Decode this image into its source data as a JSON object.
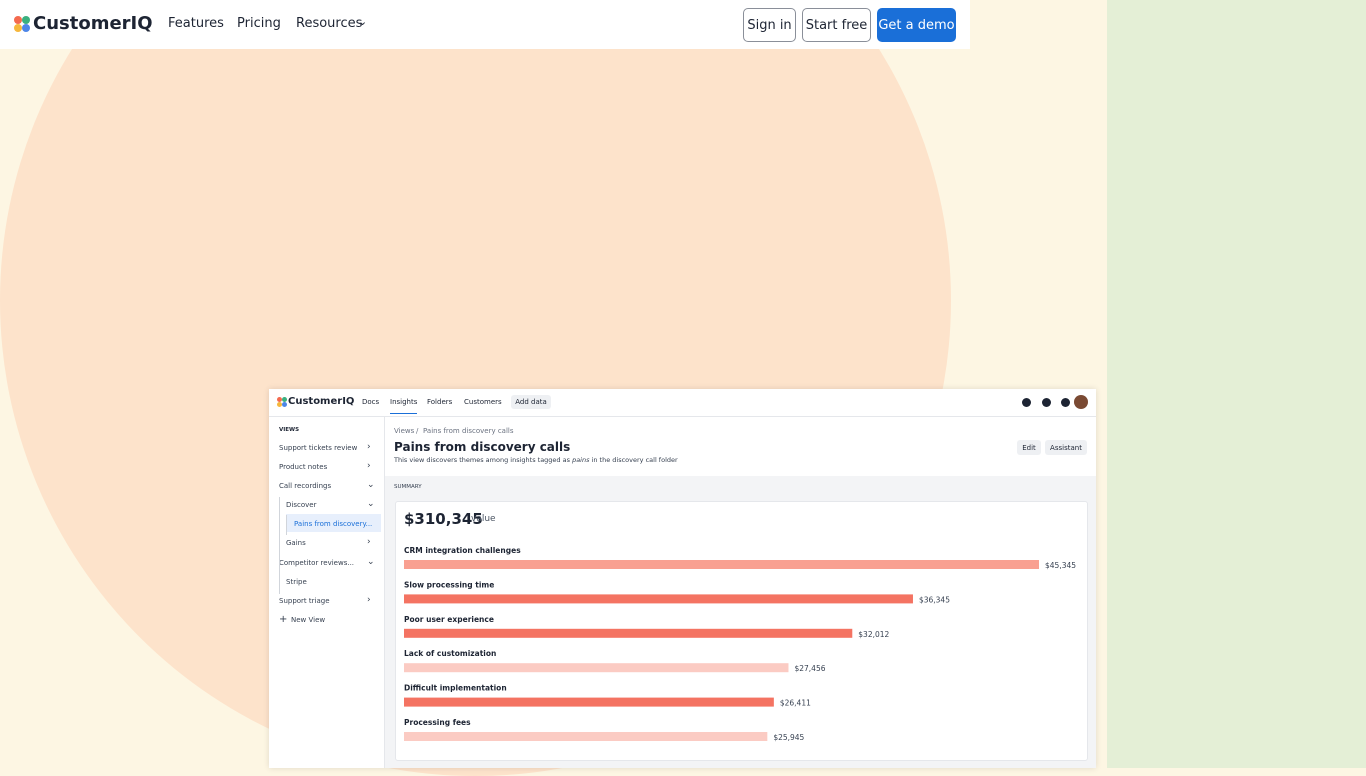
{
  "nav": {
    "brand": "CustomerIQ",
    "links": [
      "Features",
      "Pricing",
      "Resources"
    ],
    "buttons": [
      "Sign in",
      "Start free",
      "Get a demo"
    ]
  },
  "app": {
    "brand": "CustomerIQ",
    "tabs": [
      "Docs",
      "Insights",
      "Folders",
      "Customers"
    ],
    "add_data": "Add data",
    "sidebar": {
      "heading": "VIEWS",
      "items": [
        "Support tickets review",
        "Product notes",
        "Call recordings",
        "Discover",
        "Pains from discovery...",
        "Gains",
        "Competitor reviews...",
        "Stripe",
        "Support triage",
        "New View"
      ]
    },
    "breadcrumb": [
      "Views",
      "Pains from discovery calls"
    ],
    "title": "Pains from discovery calls",
    "description": [
      "This view discovers themes among insights tagged as ",
      "pains",
      " in the discovery call folder"
    ],
    "actions": [
      "Edit",
      "Assistant"
    ],
    "section": "SUMMARY",
    "total": "$310,345",
    "total_unit": "value"
  },
  "chart_data": {
    "type": "bar",
    "orientation": "horizontal",
    "categories": [
      "CRM integration challenges",
      "Slow processing time",
      "Poor user experience",
      "Lack of customization",
      "Difficult implementation",
      "Processing fees"
    ],
    "values": [
      45345,
      36345,
      32012,
      27456,
      26411,
      25945
    ],
    "value_labels": [
      "$45,345",
      "$36,345",
      "$32,012",
      "$27,456",
      "$26,411",
      "$25,945"
    ],
    "colors": [
      "#f9a091",
      "#f47362",
      "#f47362",
      "#fbcbc3",
      "#f47362",
      "#fbcbc3"
    ]
  }
}
